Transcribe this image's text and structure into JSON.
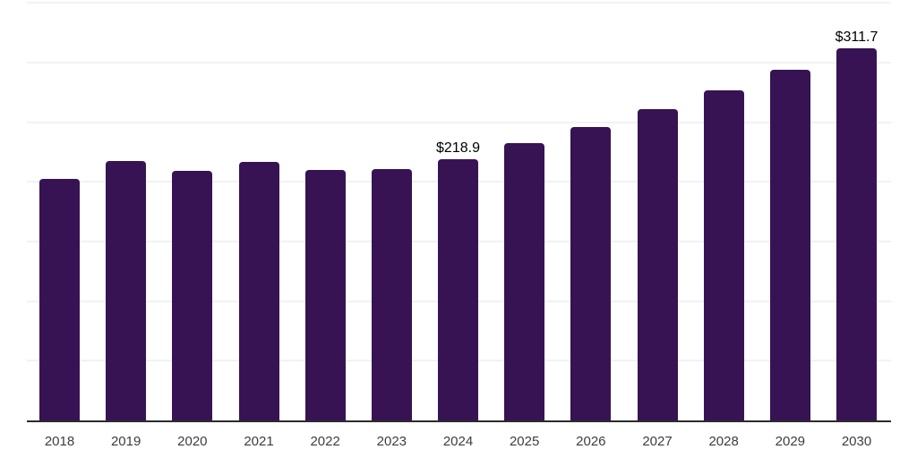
{
  "chart_data": {
    "type": "bar",
    "title": "",
    "xlabel": "",
    "ylabel": "",
    "categories": [
      "2018",
      "2019",
      "2020",
      "2021",
      "2022",
      "2023",
      "2024",
      "2025",
      "2026",
      "2027",
      "2028",
      "2029",
      "2030"
    ],
    "values": [
      202.4,
      217.3,
      209.2,
      216.8,
      209.8,
      210.5,
      218.9,
      232.2,
      246.3,
      261.2,
      277.1,
      293.9,
      311.7
    ],
    "point_labels": [
      "",
      "",
      "",
      "",
      "",
      "",
      "$218.9",
      "",
      "",
      "",
      "",
      "",
      "$311.7"
    ],
    "ylim": [
      0,
      350
    ],
    "gridline_step": 50,
    "grid": "horizontal",
    "legend_position": "none",
    "y_axis_tick_labels_visible": false,
    "colors": {
      "bar": "#371353",
      "gridline": "#f2f2f4",
      "axis_line": "#2b2b2b",
      "tick_label": "#3d3d3d",
      "data_label": "#000000",
      "background": "#ffffff"
    }
  }
}
